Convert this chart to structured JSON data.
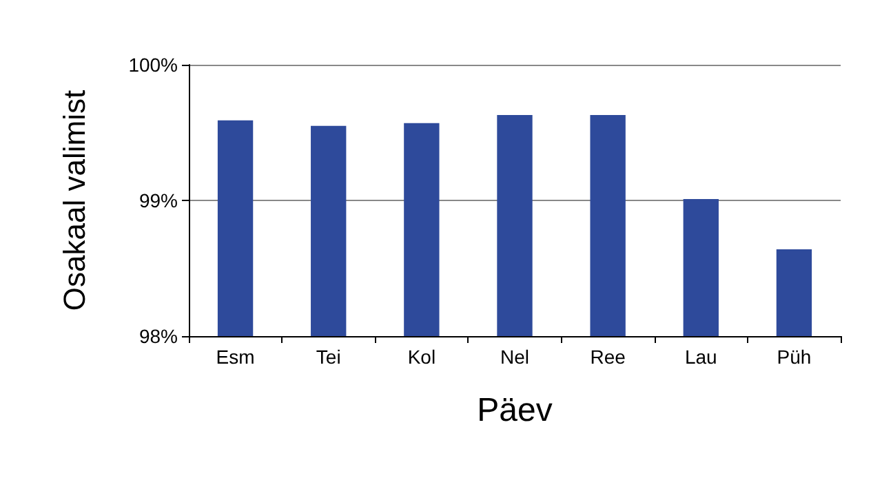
{
  "chart_data": {
    "type": "bar",
    "xlabel": "Päev",
    "ylabel": "Osakaal valimist",
    "categories": [
      "Esm",
      "Tei",
      "Kol",
      "Nel",
      "Ree",
      "Lau",
      "Püh"
    ],
    "values": [
      99.59,
      99.55,
      99.57,
      99.63,
      99.63,
      99.01,
      98.64
    ],
    "color": "#2e4a9b",
    "ylim": [
      98,
      100
    ],
    "yticks": [
      {
        "value": 98,
        "label": "98%"
      },
      {
        "value": 99,
        "label": "99%"
      },
      {
        "value": 100,
        "label": "100%"
      }
    ],
    "grid": "y"
  }
}
